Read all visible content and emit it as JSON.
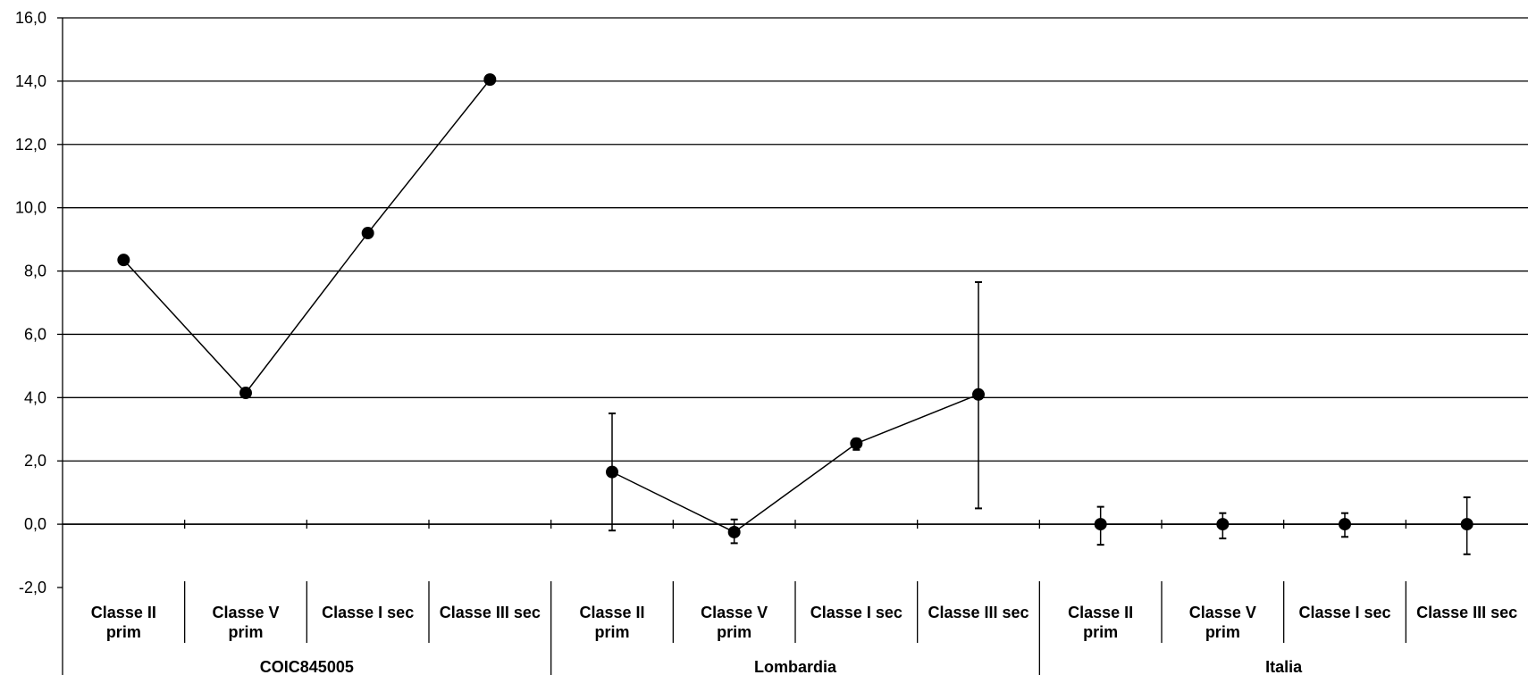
{
  "chart_data": {
    "type": "line",
    "ylim": [
      -2,
      16
    ],
    "ytick_step": 2,
    "ytick_labels": [
      "-2,0",
      "0,0",
      "2,0",
      "4,0",
      "6,0",
      "8,0",
      "10,0",
      "12,0",
      "14,0",
      "16,0"
    ],
    "grid": true,
    "legend": "none",
    "category_labels": [
      [
        "Classe II",
        "prim"
      ],
      [
        "Classe V",
        "prim"
      ],
      [
        "Classe I sec"
      ],
      [
        "Classe III sec"
      ]
    ],
    "groups": [
      {
        "name": "COIC845005",
        "values": [
          8.35,
          4.15,
          9.2,
          14.05
        ],
        "error": [
          null,
          null,
          null,
          null
        ]
      },
      {
        "name": "Lombardia",
        "values": [
          1.65,
          -0.25,
          2.55,
          4.1
        ],
        "error": [
          [
            -0.2,
            3.5
          ],
          [
            -0.6,
            0.15
          ],
          [
            2.35,
            2.7
          ],
          [
            0.5,
            7.65
          ]
        ]
      },
      {
        "name": "Italia",
        "values": [
          0.0,
          0.0,
          0.0,
          0.0
        ],
        "error": [
          [
            -0.65,
            0.55
          ],
          [
            -0.45,
            0.35
          ],
          [
            -0.4,
            0.35
          ],
          [
            -0.95,
            0.85
          ]
        ]
      }
    ],
    "colors": {
      "line": "#000000",
      "marker": "#000000",
      "grid": "#000000"
    }
  }
}
